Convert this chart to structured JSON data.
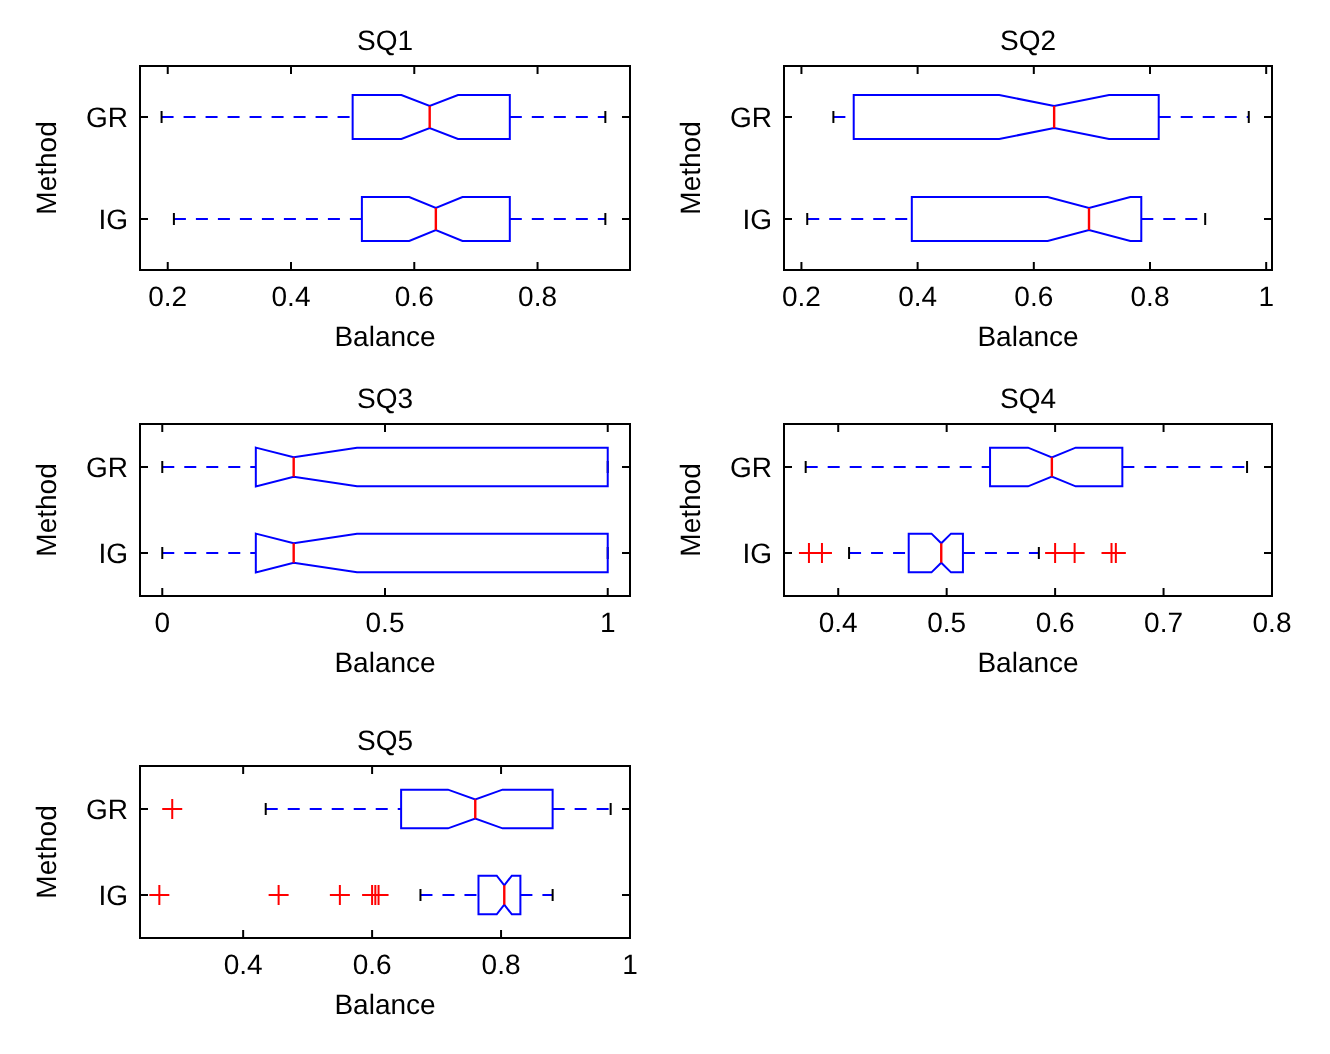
{
  "chart_data": [
    {
      "type": "box",
      "title": "SQ1",
      "xlabel": "Balance",
      "ylabel": "Method",
      "orientation": "horizontal",
      "categories": [
        "GR",
        "IG"
      ],
      "xlim": [
        0.155,
        0.95
      ],
      "xticks": [
        0.2,
        0.4,
        0.6,
        0.8
      ],
      "color": "#0000ff",
      "boxes": [
        {
          "low": 0.19,
          "q1": 0.5,
          "median": 0.625,
          "q3": 0.755,
          "high": 0.91
        },
        {
          "low": 0.21,
          "q1": 0.515,
          "median": 0.635,
          "q3": 0.755,
          "high": 0.91
        }
      ]
    },
    {
      "type": "box",
      "title": "SQ2",
      "xlabel": "Balance",
      "ylabel": "Method",
      "orientation": "horizontal",
      "categories": [
        "GR",
        "IG"
      ],
      "xlim": [
        0.17,
        1.01
      ],
      "xticks": [
        0.2,
        0.4,
        0.6,
        0.8,
        1
      ],
      "color": "#0000ff",
      "boxes": [
        {
          "low": 0.255,
          "q1": 0.29,
          "median": 0.635,
          "q3": 0.815,
          "high": 0.97
        },
        {
          "low": 0.21,
          "q1": 0.39,
          "median": 0.695,
          "q3": 0.785,
          "high": 0.895
        }
      ]
    },
    {
      "type": "box",
      "title": "SQ3",
      "xlabel": "Balance",
      "ylabel": "Method",
      "orientation": "horizontal",
      "categories": [
        "GR",
        "IG"
      ],
      "xlim": [
        -0.05,
        1.05
      ],
      "xticks": [
        0,
        0.5,
        1
      ],
      "color": "#0000ff",
      "boxes": [
        {
          "low": 0,
          "q1": 0.21,
          "median": 0.295,
          "q3": 1,
          "high": 1
        },
        {
          "low": 0,
          "q1": 0.21,
          "median": 0.295,
          "q3": 1,
          "high": 1
        }
      ]
    },
    {
      "type": "box",
      "title": "SQ4",
      "xlabel": "Balance",
      "ylabel": "Method",
      "orientation": "horizontal",
      "categories": [
        "GR",
        "IG"
      ],
      "xlim": [
        0.35,
        0.8
      ],
      "xticks": [
        0.4,
        0.5,
        0.6,
        0.7,
        0.8
      ],
      "color": "#0000ff",
      "boxes": [
        {
          "low": 0.37,
          "q1": 0.54,
          "median": 0.597,
          "q3": 0.662,
          "high": 0.777
        },
        {
          "low": 0.41,
          "q1": 0.465,
          "median": 0.495,
          "q3": 0.515,
          "high": 0.585,
          "outliers": [
            0.373,
            0.385,
            0.6,
            0.618,
            0.652,
            0.656
          ]
        }
      ]
    },
    {
      "type": "box",
      "title": "SQ5",
      "xlabel": "Balance",
      "ylabel": "Method",
      "orientation": "horizontal",
      "categories": [
        "GR",
        "IG"
      ],
      "xlim": [
        0.24,
        1.0
      ],
      "xticks": [
        0.4,
        0.6,
        0.8,
        1
      ],
      "color": "#0000ff",
      "boxes": [
        {
          "low": 0.435,
          "q1": 0.645,
          "median": 0.76,
          "q3": 0.88,
          "high": 0.97,
          "outliers": [
            0.29
          ]
        },
        {
          "low": 0.675,
          "q1": 0.765,
          "median": 0.805,
          "q3": 0.83,
          "high": 0.88,
          "outliers": [
            0.27,
            0.455,
            0.55,
            0.6,
            0.605,
            0.61
          ]
        }
      ]
    }
  ]
}
